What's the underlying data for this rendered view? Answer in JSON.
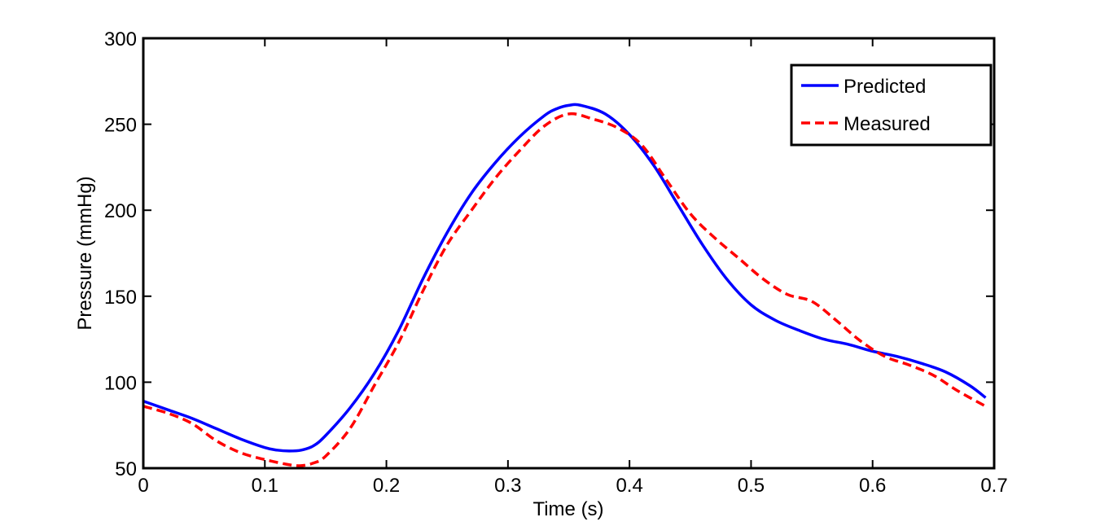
{
  "chart_data": {
    "type": "line",
    "title": "",
    "xlabel": "Time (s)",
    "ylabel": "Pressure (mmHg)",
    "xlim": [
      0,
      0.7
    ],
    "ylim": [
      50,
      300
    ],
    "xticks": [
      0,
      0.1,
      0.2,
      0.3,
      0.4,
      0.5,
      0.6,
      0.7
    ],
    "xtick_labels": [
      "0",
      "0.1",
      "0.2",
      "0.3",
      "0.4",
      "0.5",
      "0.6",
      "0.7"
    ],
    "yticks": [
      50,
      100,
      150,
      200,
      250,
      300
    ],
    "ytick_labels": [
      "50",
      "100",
      "150",
      "200",
      "250",
      "300"
    ],
    "grid": false,
    "legend_position": "top-right",
    "series": [
      {
        "name": "Predicted",
        "color": "#0000FF",
        "style": "solid",
        "x": [
          0,
          0.02,
          0.04,
          0.06,
          0.08,
          0.1,
          0.11,
          0.12,
          0.13,
          0.14,
          0.15,
          0.17,
          0.19,
          0.21,
          0.23,
          0.25,
          0.27,
          0.29,
          0.31,
          0.33,
          0.34,
          0.35,
          0.36,
          0.38,
          0.4,
          0.42,
          0.44,
          0.46,
          0.48,
          0.5,
          0.52,
          0.54,
          0.56,
          0.58,
          0.6,
          0.62,
          0.64,
          0.66,
          0.68,
          0.693
        ],
        "y": [
          89,
          84,
          79,
          73,
          67,
          62,
          60.5,
          60,
          60.5,
          63,
          69,
          85,
          105,
          130,
          160,
          187,
          210,
          228,
          243,
          255,
          259,
          261,
          261,
          256,
          244,
          226,
          203,
          180,
          160,
          145,
          136,
          130,
          125,
          122,
          118,
          115,
          111,
          106,
          98,
          91
        ]
      },
      {
        "name": "Measured",
        "color": "#FF0000",
        "style": "dashed",
        "x": [
          0,
          0.02,
          0.04,
          0.06,
          0.08,
          0.1,
          0.12,
          0.13,
          0.14,
          0.15,
          0.17,
          0.19,
          0.21,
          0.23,
          0.25,
          0.27,
          0.29,
          0.31,
          0.33,
          0.35,
          0.37,
          0.39,
          0.41,
          0.43,
          0.45,
          0.47,
          0.49,
          0.51,
          0.53,
          0.55,
          0.57,
          0.59,
          0.61,
          0.63,
          0.65,
          0.67,
          0.693
        ],
        "y": [
          86,
          82,
          76,
          66,
          59,
          55,
          52,
          51.5,
          53,
          57,
          73,
          98,
          123,
          153,
          180,
          200,
          219,
          235,
          249,
          256,
          253,
          248,
          238,
          218,
          198,
          184,
          172,
          160,
          151,
          147,
          136,
          124,
          115,
          110,
          104,
          95,
          86
        ]
      }
    ]
  }
}
